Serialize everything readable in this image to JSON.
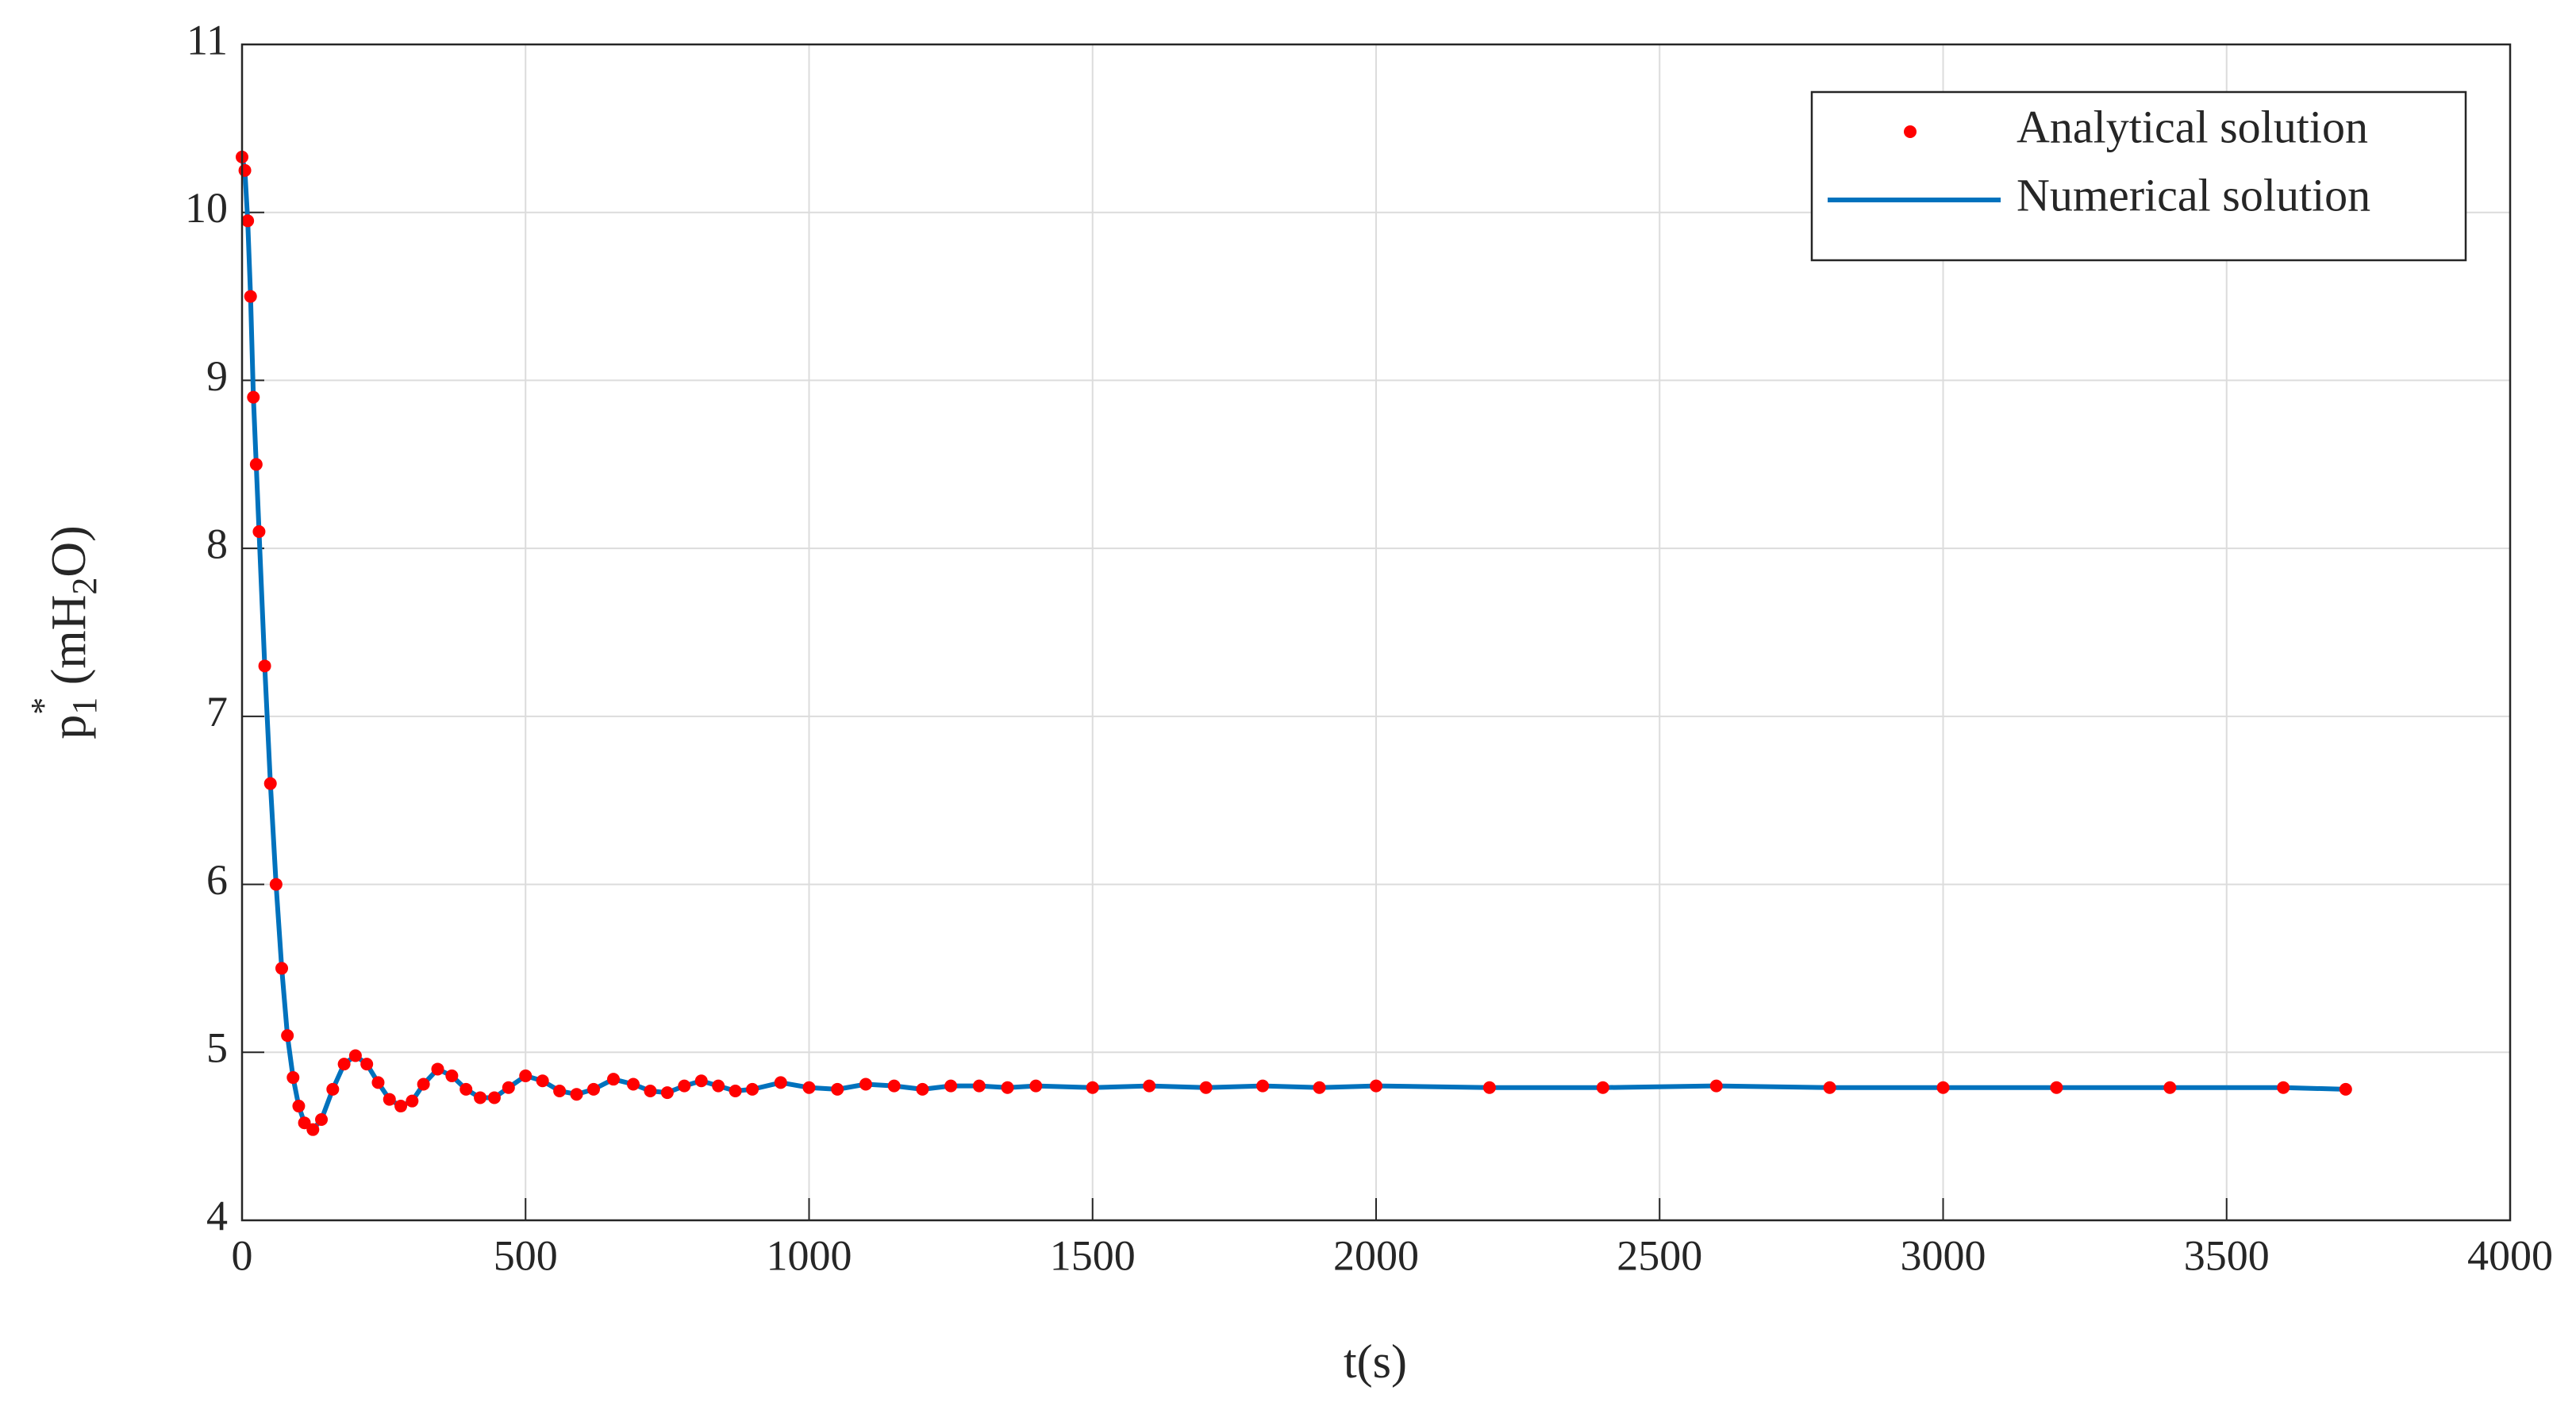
{
  "chart_data": {
    "type": "line",
    "ylabel": [
      "p",
      "1",
      "*",
      " (mH",
      "2",
      "O)"
    ],
    "xlabel": "t(s)",
    "x": [
      0,
      5,
      10,
      15,
      20,
      25,
      30,
      40,
      50,
      60,
      70,
      80,
      90,
      100,
      110,
      125,
      140,
      160,
      180,
      200,
      220,
      240,
      260,
      280,
      300,
      320,
      345,
      370,
      395,
      420,
      445,
      470,
      500,
      530,
      560,
      590,
      620,
      655,
      690,
      720,
      750,
      780,
      810,
      840,
      870,
      900,
      950,
      1000,
      1050,
      1100,
      1150,
      1200,
      1250,
      1300,
      1350,
      1400,
      1500,
      1600,
      1700,
      1800,
      1900,
      2000,
      2200,
      2400,
      2600,
      2800,
      3000,
      3200,
      3400,
      3600,
      3710
    ],
    "series": [
      {
        "name": "Analytical solution",
        "color": "#ff0000",
        "style": "dots",
        "values": [
          10.33,
          10.25,
          9.95,
          9.5,
          8.9,
          8.5,
          8.1,
          7.3,
          6.6,
          6.0,
          5.5,
          5.1,
          4.85,
          4.68,
          4.58,
          4.54,
          4.6,
          4.78,
          4.93,
          4.98,
          4.93,
          4.82,
          4.72,
          4.68,
          4.71,
          4.81,
          4.9,
          4.86,
          4.78,
          4.73,
          4.73,
          4.79,
          4.86,
          4.83,
          4.77,
          4.75,
          4.78,
          4.84,
          4.81,
          4.77,
          4.76,
          4.8,
          4.83,
          4.8,
          4.77,
          4.78,
          4.82,
          4.79,
          4.78,
          4.81,
          4.8,
          4.78,
          4.8,
          4.8,
          4.79,
          4.8,
          4.79,
          4.8,
          4.79,
          4.8,
          4.79,
          4.8,
          4.79,
          4.79,
          4.8,
          4.79,
          4.79,
          4.79,
          4.79,
          4.79,
          4.78
        ]
      },
      {
        "name": "Numerical solution",
        "color": "#0072bd",
        "style": "line",
        "values": [
          10.33,
          10.25,
          9.95,
          9.5,
          8.9,
          8.5,
          8.1,
          7.3,
          6.6,
          6.0,
          5.5,
          5.1,
          4.85,
          4.68,
          4.58,
          4.54,
          4.6,
          4.78,
          4.93,
          4.98,
          4.93,
          4.82,
          4.72,
          4.68,
          4.71,
          4.81,
          4.9,
          4.86,
          4.78,
          4.73,
          4.73,
          4.79,
          4.86,
          4.83,
          4.77,
          4.75,
          4.78,
          4.84,
          4.81,
          4.77,
          4.76,
          4.8,
          4.83,
          4.8,
          4.77,
          4.78,
          4.82,
          4.79,
          4.78,
          4.81,
          4.8,
          4.78,
          4.8,
          4.8,
          4.79,
          4.8,
          4.79,
          4.8,
          4.79,
          4.8,
          4.79,
          4.8,
          4.79,
          4.79,
          4.8,
          4.79,
          4.79,
          4.79,
          4.79,
          4.79,
          4.78
        ]
      }
    ],
    "xlim": [
      0,
      4000
    ],
    "xticks": [
      0,
      500,
      1000,
      1500,
      2000,
      2500,
      3000,
      3500,
      4000
    ],
    "ylim": [
      4,
      11
    ],
    "yticks": [
      4,
      5,
      6,
      7,
      8,
      9,
      10,
      11
    ],
    "grid": true,
    "legend": "upper right"
  }
}
